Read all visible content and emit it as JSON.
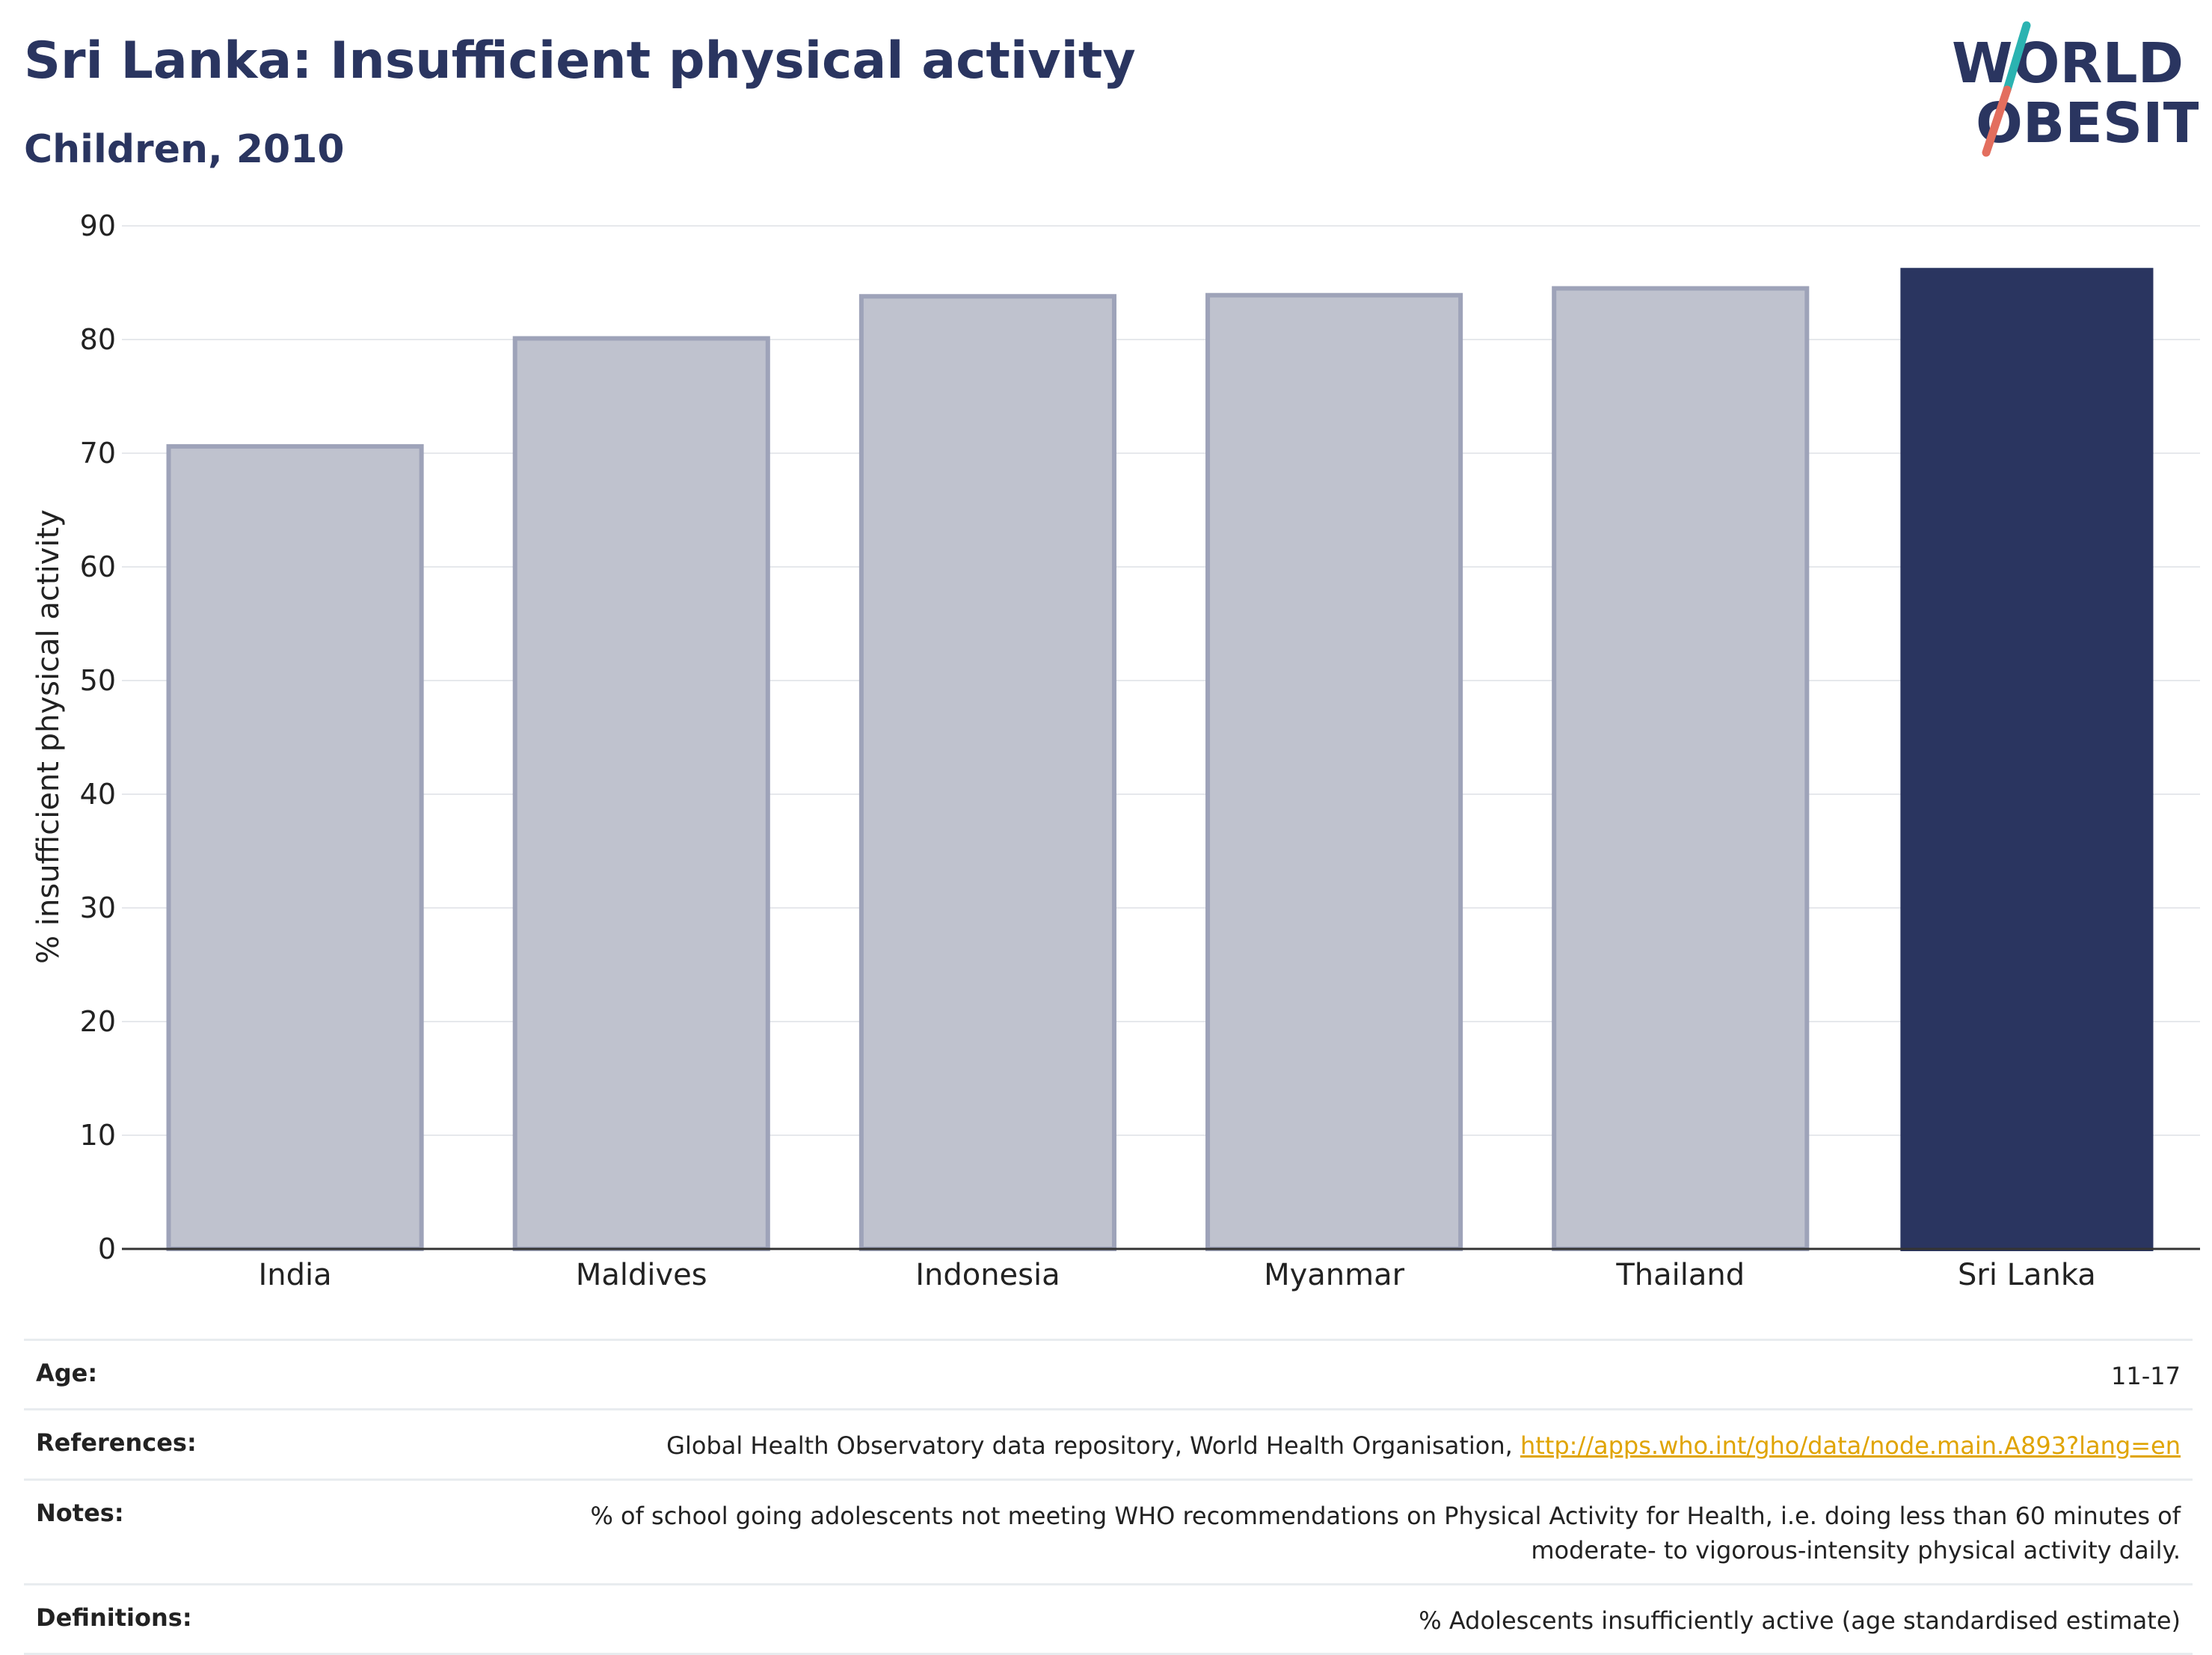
{
  "header": {
    "title": "Sri Lanka: Insufficient physical activity",
    "subtitle": "Children, 2010"
  },
  "logo": {
    "line1": "WORLD",
    "line2": "OBESITY"
  },
  "colors": {
    "highlight_bar": "#2a3560",
    "comparison_bar": "#bfc2ce",
    "comparison_bar_border": "#9ea3b9",
    "logo_slash_top": "#2bb3b1",
    "logo_slash_bottom": "#e36e5e",
    "link": "#e0a400"
  },
  "chart_data": {
    "type": "bar",
    "title": "Sri Lanka: Insufficient physical activity",
    "subtitle": "Children, 2010",
    "ylabel": "% insufficient physical activity",
    "xlabel": "",
    "ylim": [
      0,
      90
    ],
    "yticks": [
      0,
      10,
      20,
      30,
      40,
      50,
      60,
      70,
      80,
      90
    ],
    "grid": true,
    "categories": [
      "India",
      "Maldives",
      "Indonesia",
      "Myanmar",
      "Thailand",
      "Sri Lanka"
    ],
    "values": [
      70.6,
      80.1,
      83.8,
      83.9,
      84.5,
      86.3
    ],
    "highlight": "Sri Lanka"
  },
  "info": [
    {
      "label": "Age:",
      "value": "11-17"
    },
    {
      "label": "References:",
      "value": "Global Health Observatory data repository, World Health Organisation, ",
      "link": "http://apps.who.int/gho/data/node.main.A893?lang=en"
    },
    {
      "label": "Notes:",
      "value": "% of school going adolescents not meeting WHO recommendations on Physical Activity for Health, i.e. doing less than 60 minutes of moderate- to vigorous-intensity physical activity daily."
    },
    {
      "label": "Definitions:",
      "value": "% Adolescents insufficiently active (age standardised estimate)"
    }
  ]
}
